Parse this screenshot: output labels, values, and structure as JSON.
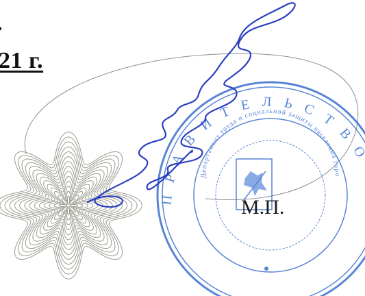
{
  "document": {
    "date_fragment": "21 г.",
    "stamp_area_label": "М.П."
  },
  "stamp": {
    "outer_text": "ПРАВИТЕЛЬСТВО МОСКВЫ",
    "inner_text": "Департамент труда и социальной защиты населения города Москвы",
    "color": "#3a6fd0",
    "emblem": "moscow-coat-of-arms-icon"
  },
  "signature": {
    "color": "#2a3fbf"
  },
  "seal_rosette": {
    "color": "#9a9a90"
  }
}
